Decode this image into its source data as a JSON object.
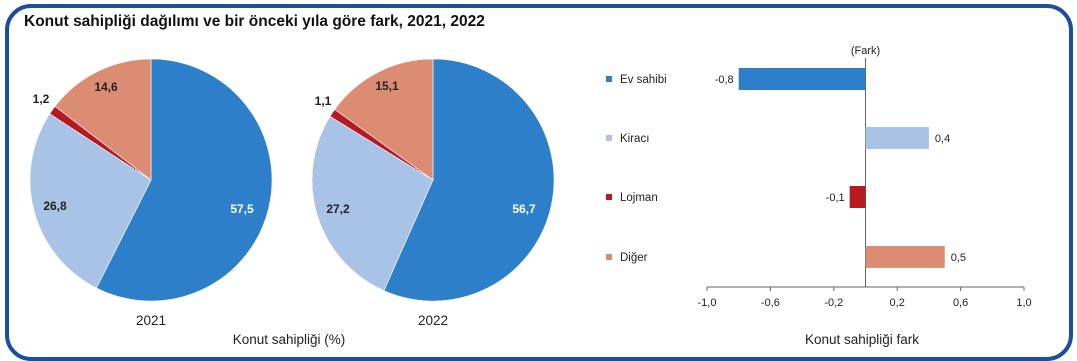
{
  "title": "Konut sahipliği dağılımı ve bir önceki yıla göre fark, 2021, 2022",
  "colors": {
    "ev_sahibi": "#2e7fc9",
    "kiraci": "#a9c3e6",
    "lojman": "#b7191f",
    "diger": "#dd8c74",
    "frame": "#1b4f9c"
  },
  "pie_caption": "Konut sahipliği (%)",
  "bar_caption": "Konut sahipliği fark",
  "bar_unit_label": "(Fark)",
  "chart_data": [
    {
      "type": "pie",
      "title": "2021",
      "categories": [
        "Ev sahibi",
        "Kiracı",
        "Lojman",
        "Diğer"
      ],
      "values": [
        57.5,
        26.8,
        1.2,
        14.6
      ],
      "labels": [
        "57,5",
        "26,8",
        "1,2",
        "14,6"
      ]
    },
    {
      "type": "pie",
      "title": "2022",
      "categories": [
        "Ev sahibi",
        "Kiracı",
        "Lojman",
        "Diğer"
      ],
      "values": [
        56.7,
        27.2,
        1.1,
        15.1
      ],
      "labels": [
        "56,7",
        "27,2",
        "1,1",
        "15,1"
      ]
    },
    {
      "type": "bar",
      "orientation": "horizontal",
      "categories": [
        "Ev sahibi",
        "Kiracı",
        "Lojman",
        "Diğer"
      ],
      "values": [
        -0.8,
        0.4,
        -0.1,
        0.5
      ],
      "labels": [
        "-0,8",
        "0,4",
        "-0,1",
        "0,5"
      ],
      "xlim": [
        -1.0,
        1.0
      ],
      "xticks": [
        "-1,0",
        "-0,6",
        "-0,2",
        "0,2",
        "0,6",
        "1,0"
      ],
      "xtick_values": [
        -1.0,
        -0.6,
        -0.2,
        0.2,
        0.6,
        1.0
      ],
      "xlabel": "Konut sahipliği fark",
      "legend": [
        "Ev sahibi",
        "Kiracı",
        "Lojman",
        "Diğer"
      ]
    }
  ]
}
